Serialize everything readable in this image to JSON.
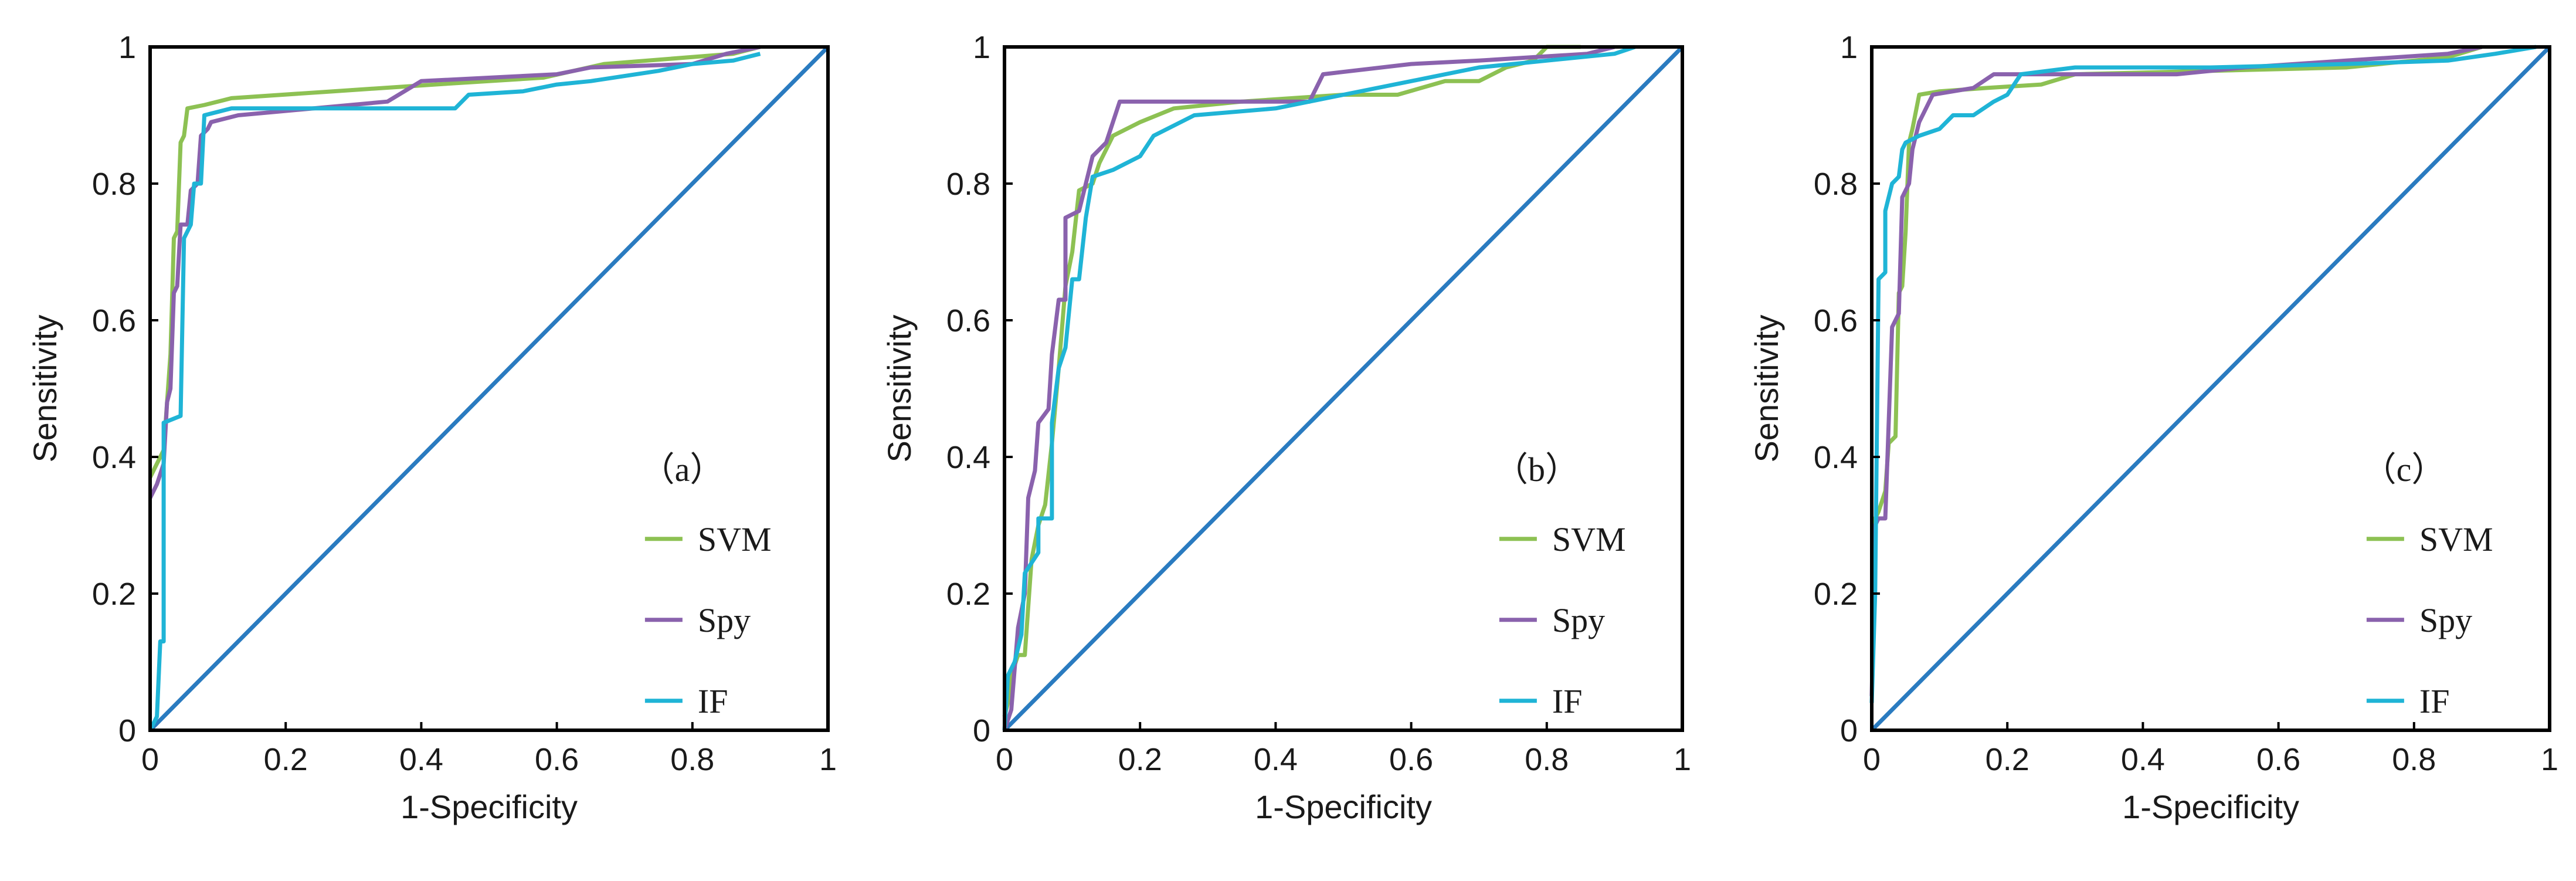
{
  "figure": {
    "colors": {
      "SVM": "#8dc153",
      "Spy": "#8a62ad",
      "IF": "#1fb4d6",
      "diagonal": "#2a7bc0",
      "frame": "#000000"
    }
  },
  "chart_data": [
    {
      "type": "line",
      "panel_label": "（a）",
      "xlabel": "1-Specificity",
      "ylabel": "Sensitivity",
      "xlim": [
        0,
        1
      ],
      "ylim": [
        0,
        1
      ],
      "x_ticks": [
        "0",
        "0.2",
        "0.4",
        "0.6",
        "0.8",
        "1"
      ],
      "y_ticks": [
        "0",
        "0.2",
        "0.4",
        "0.6",
        "0.8",
        "1"
      ],
      "grid": false,
      "legend_position": "bottom-right",
      "diagonal": [
        [
          0,
          0
        ],
        [
          1,
          1
        ]
      ],
      "series": [
        {
          "name": "SVM",
          "points": [
            [
              0,
              0.37
            ],
            [
              0.01,
              0.39
            ],
            [
              0.02,
              0.41
            ],
            [
              0.025,
              0.48
            ],
            [
              0.03,
              0.55
            ],
            [
              0.035,
              0.72
            ],
            [
              0.04,
              0.73
            ],
            [
              0.045,
              0.86
            ],
            [
              0.05,
              0.87
            ],
            [
              0.055,
              0.91
            ],
            [
              0.08,
              0.915
            ],
            [
              0.12,
              0.925
            ],
            [
              0.27,
              0.935
            ],
            [
              0.42,
              0.945
            ],
            [
              0.58,
              0.955
            ],
            [
              0.67,
              0.975
            ],
            [
              0.86,
              0.99
            ],
            [
              0.9,
              1
            ]
          ]
        },
        {
          "name": "Spy",
          "points": [
            [
              0,
              0.34
            ],
            [
              0.01,
              0.36
            ],
            [
              0.02,
              0.39
            ],
            [
              0.025,
              0.48
            ],
            [
              0.03,
              0.5
            ],
            [
              0.035,
              0.64
            ],
            [
              0.04,
              0.65
            ],
            [
              0.045,
              0.74
            ],
            [
              0.055,
              0.74
            ],
            [
              0.06,
              0.79
            ],
            [
              0.07,
              0.8
            ],
            [
              0.075,
              0.87
            ],
            [
              0.085,
              0.88
            ],
            [
              0.09,
              0.89
            ],
            [
              0.13,
              0.9
            ],
            [
              0.35,
              0.92
            ],
            [
              0.4,
              0.95
            ],
            [
              0.6,
              0.96
            ],
            [
              0.65,
              0.97
            ],
            [
              0.8,
              0.975
            ],
            [
              0.85,
              0.99
            ],
            [
              0.9,
              1
            ]
          ]
        },
        {
          "name": "IF",
          "points": [
            [
              0,
              0
            ],
            [
              0.01,
              0.02
            ],
            [
              0.015,
              0.13
            ],
            [
              0.02,
              0.13
            ],
            [
              0.02,
              0.45
            ],
            [
              0.045,
              0.46
            ],
            [
              0.05,
              0.72
            ],
            [
              0.055,
              0.73
            ],
            [
              0.06,
              0.74
            ],
            [
              0.065,
              0.8
            ],
            [
              0.075,
              0.8
            ],
            [
              0.08,
              0.9
            ],
            [
              0.1,
              0.905
            ],
            [
              0.12,
              0.91
            ],
            [
              0.45,
              0.91
            ],
            [
              0.47,
              0.93
            ],
            [
              0.55,
              0.935
            ],
            [
              0.6,
              0.945
            ],
            [
              0.65,
              0.95
            ],
            [
              0.75,
              0.965
            ],
            [
              0.8,
              0.975
            ],
            [
              0.86,
              0.98
            ],
            [
              0.9,
              0.99
            ]
          ]
        }
      ]
    },
    {
      "type": "line",
      "panel_label": "（b）",
      "xlabel": "1-Specificity",
      "ylabel": "Sensitivity",
      "xlim": [
        0,
        1
      ],
      "ylim": [
        0,
        1
      ],
      "x_ticks": [
        "0",
        "0.2",
        "0.4",
        "0.6",
        "0.8",
        "1"
      ],
      "y_ticks": [
        "0",
        "0.2",
        "0.4",
        "0.6",
        "0.8",
        "1"
      ],
      "grid": false,
      "legend_position": "bottom-right",
      "diagonal": [
        [
          0,
          0
        ],
        [
          1,
          1
        ]
      ],
      "series": [
        {
          "name": "SVM",
          "points": [
            [
              0,
              0.02
            ],
            [
              0.005,
              0.04
            ],
            [
              0.01,
              0.08
            ],
            [
              0.02,
              0.11
            ],
            [
              0.03,
              0.11
            ],
            [
              0.04,
              0.25
            ],
            [
              0.05,
              0.3
            ],
            [
              0.06,
              0.33
            ],
            [
              0.07,
              0.42
            ],
            [
              0.08,
              0.53
            ],
            [
              0.09,
              0.65
            ],
            [
              0.1,
              0.7
            ],
            [
              0.11,
              0.79
            ],
            [
              0.13,
              0.8
            ],
            [
              0.14,
              0.83
            ],
            [
              0.16,
              0.87
            ],
            [
              0.2,
              0.89
            ],
            [
              0.25,
              0.91
            ],
            [
              0.35,
              0.92
            ],
            [
              0.5,
              0.93
            ],
            [
              0.58,
              0.93
            ],
            [
              0.65,
              0.95
            ],
            [
              0.7,
              0.95
            ],
            [
              0.74,
              0.97
            ],
            [
              0.78,
              0.98
            ],
            [
              0.8,
              1
            ],
            [
              0.85,
              1
            ]
          ]
        },
        {
          "name": "Spy",
          "points": [
            [
              0,
              0
            ],
            [
              0.01,
              0.03
            ],
            [
              0.02,
              0.15
            ],
            [
              0.03,
              0.2
            ],
            [
              0.035,
              0.34
            ],
            [
              0.045,
              0.38
            ],
            [
              0.05,
              0.45
            ],
            [
              0.065,
              0.47
            ],
            [
              0.07,
              0.55
            ],
            [
              0.08,
              0.63
            ],
            [
              0.09,
              0.63
            ],
            [
              0.09,
              0.75
            ],
            [
              0.11,
              0.76
            ],
            [
              0.13,
              0.84
            ],
            [
              0.15,
              0.86
            ],
            [
              0.17,
              0.92
            ],
            [
              0.45,
              0.92
            ],
            [
              0.47,
              0.96
            ],
            [
              0.6,
              0.975
            ],
            [
              0.7,
              0.98
            ],
            [
              0.86,
              0.99
            ],
            [
              0.9,
              1
            ]
          ]
        },
        {
          "name": "IF",
          "points": [
            [
              0,
              0
            ],
            [
              0.005,
              0.08
            ],
            [
              0.015,
              0.1
            ],
            [
              0.025,
              0.14
            ],
            [
              0.03,
              0.23
            ],
            [
              0.05,
              0.26
            ],
            [
              0.05,
              0.31
            ],
            [
              0.07,
              0.31
            ],
            [
              0.07,
              0.45
            ],
            [
              0.08,
              0.53
            ],
            [
              0.09,
              0.56
            ],
            [
              0.1,
              0.66
            ],
            [
              0.11,
              0.66
            ],
            [
              0.12,
              0.75
            ],
            [
              0.13,
              0.81
            ],
            [
              0.16,
              0.82
            ],
            [
              0.2,
              0.84
            ],
            [
              0.22,
              0.87
            ],
            [
              0.28,
              0.9
            ],
            [
              0.4,
              0.91
            ],
            [
              0.5,
              0.93
            ],
            [
              0.6,
              0.95
            ],
            [
              0.7,
              0.97
            ],
            [
              0.8,
              0.98
            ],
            [
              0.9,
              0.99
            ],
            [
              0.93,
              1
            ]
          ]
        }
      ]
    },
    {
      "type": "line",
      "panel_label": "（c）",
      "xlabel": "1-Specificity",
      "ylabel": "Sensitivity",
      "xlim": [
        0,
        1
      ],
      "ylim": [
        0,
        1
      ],
      "x_ticks": [
        "0",
        "0.2",
        "0.4",
        "0.6",
        "0.8",
        "1"
      ],
      "y_ticks": [
        "0",
        "0.2",
        "0.4",
        "0.6",
        "0.8",
        "1"
      ],
      "grid": false,
      "legend_position": "bottom-right",
      "diagonal": [
        [
          0,
          0
        ],
        [
          1,
          1
        ]
      ],
      "series": [
        {
          "name": "SVM",
          "points": [
            [
              0,
              0.3
            ],
            [
              0.01,
              0.32
            ],
            [
              0.02,
              0.35
            ],
            [
              0.025,
              0.42
            ],
            [
              0.035,
              0.43
            ],
            [
              0.04,
              0.64
            ],
            [
              0.045,
              0.65
            ],
            [
              0.05,
              0.73
            ],
            [
              0.055,
              0.86
            ],
            [
              0.06,
              0.88
            ],
            [
              0.07,
              0.93
            ],
            [
              0.1,
              0.935
            ],
            [
              0.17,
              0.94
            ],
            [
              0.25,
              0.945
            ],
            [
              0.3,
              0.96
            ],
            [
              0.5,
              0.965
            ],
            [
              0.7,
              0.97
            ],
            [
              0.85,
              0.985
            ],
            [
              0.9,
              1
            ]
          ]
        },
        {
          "name": "Spy",
          "points": [
            [
              0,
              0.05
            ],
            [
              0.005,
              0.3
            ],
            [
              0.01,
              0.31
            ],
            [
              0.02,
              0.31
            ],
            [
              0.025,
              0.45
            ],
            [
              0.03,
              0.59
            ],
            [
              0.04,
              0.61
            ],
            [
              0.045,
              0.78
            ],
            [
              0.055,
              0.8
            ],
            [
              0.06,
              0.85
            ],
            [
              0.07,
              0.89
            ],
            [
              0.09,
              0.93
            ],
            [
              0.12,
              0.935
            ],
            [
              0.15,
              0.94
            ],
            [
              0.18,
              0.96
            ],
            [
              0.45,
              0.96
            ],
            [
              0.55,
              0.97
            ],
            [
              0.7,
              0.98
            ],
            [
              0.85,
              0.99
            ],
            [
              0.9,
              1
            ]
          ]
        },
        {
          "name": "IF",
          "points": [
            [
              0,
              0.04
            ],
            [
              0.005,
              0.2
            ],
            [
              0.01,
              0.66
            ],
            [
              0.02,
              0.67
            ],
            [
              0.02,
              0.76
            ],
            [
              0.03,
              0.8
            ],
            [
              0.04,
              0.81
            ],
            [
              0.045,
              0.85
            ],
            [
              0.05,
              0.86
            ],
            [
              0.07,
              0.87
            ],
            [
              0.1,
              0.88
            ],
            [
              0.12,
              0.9
            ],
            [
              0.15,
              0.9
            ],
            [
              0.18,
              0.92
            ],
            [
              0.2,
              0.93
            ],
            [
              0.22,
              0.96
            ],
            [
              0.3,
              0.97
            ],
            [
              0.5,
              0.97
            ],
            [
              0.7,
              0.975
            ],
            [
              0.85,
              0.98
            ],
            [
              0.92,
              0.99
            ],
            [
              0.98,
              1
            ]
          ]
        }
      ]
    }
  ]
}
